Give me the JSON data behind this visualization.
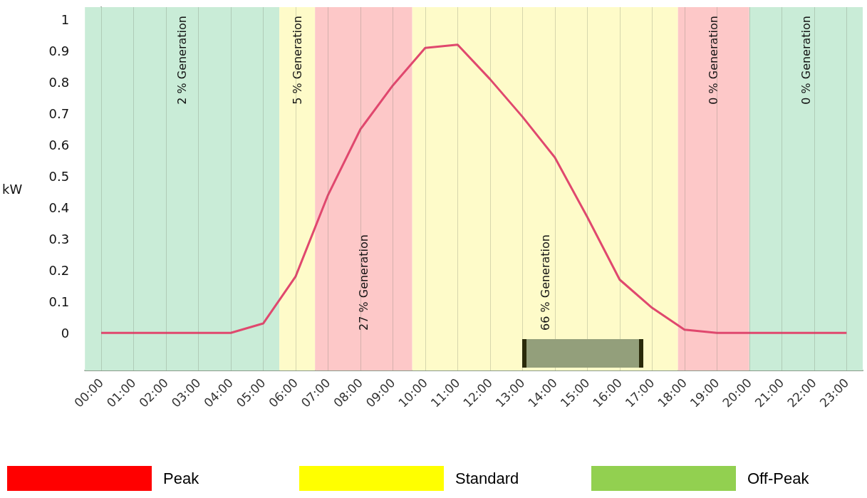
{
  "chart_data": {
    "type": "line",
    "ylabel": "kW",
    "x": [
      0,
      1,
      2,
      3,
      4,
      5,
      6,
      7,
      8,
      9,
      10,
      11,
      12,
      13,
      14,
      15,
      16,
      17,
      18,
      19,
      20,
      21,
      22,
      23
    ],
    "series": [
      {
        "color": "#e0486e",
        "values": [
          0,
          0,
          0,
          0,
          0,
          0.03,
          0.18,
          0.44,
          0.65,
          0.79,
          0.91,
          0.92,
          0.81,
          0.69,
          0.56,
          0.37,
          0.17,
          0.08,
          0.01,
          0,
          0,
          0,
          0,
          0
        ]
      }
    ],
    "annotations": [
      "Peak",
      "Standard",
      "Off-Peak"
    ],
    "bands": [
      {
        "axis": "x",
        "from": -0.5,
        "to": 5.5,
        "label": "2 % Generation",
        "color": "#c9ecd7"
      },
      {
        "axis": "x",
        "from": 5.5,
        "to": 6.6,
        "label": "5 % Generation",
        "color": "#fefbc9"
      },
      {
        "axis": "x",
        "from": 6.6,
        "to": 9.6,
        "label": "27 % Generation",
        "color": "#fdc8c8"
      },
      {
        "axis": "x",
        "from": 9.6,
        "to": 17.8,
        "label": "66 % Generation",
        "color": "#fefbc9"
      },
      {
        "axis": "x",
        "from": 17.8,
        "to": 20,
        "label": "0 % Generation",
        "color": "#fdc8c8"
      },
      {
        "axis": "x",
        "from": 20,
        "to": 23.5,
        "label": "0 % Generation",
        "color": "#c9ecd7"
      }
    ],
    "xlim": [
      -0.5,
      23.5
    ],
    "xticks": [
      {
        "value": 0,
        "label": "00:00"
      },
      {
        "value": 1,
        "label": "01:00"
      },
      {
        "value": 2,
        "label": "02:00"
      },
      {
        "value": 3,
        "label": "03:00"
      },
      {
        "value": 4,
        "label": "04:00"
      },
      {
        "value": 5,
        "label": "05:00"
      },
      {
        "value": 6,
        "label": "06:00"
      },
      {
        "value": 7,
        "label": "07:00"
      },
      {
        "value": 8,
        "label": "08:00"
      },
      {
        "value": 9,
        "label": "09:00"
      },
      {
        "value": 10,
        "label": "10:00"
      },
      {
        "value": 11,
        "label": "11:00"
      },
      {
        "value": 12,
        "label": "12:00"
      },
      {
        "value": 13,
        "label": "13:00"
      },
      {
        "value": 14,
        "label": "14:00"
      },
      {
        "value": 15,
        "label": "15:00"
      },
      {
        "value": 16,
        "label": "16:00"
      },
      {
        "value": 17,
        "label": "17:00"
      },
      {
        "value": 18,
        "label": "18:00"
      },
      {
        "value": 19,
        "label": "19:00"
      },
      {
        "value": 20,
        "label": "20:00"
      },
      {
        "value": 21,
        "label": "21:00"
      },
      {
        "value": 22,
        "label": "22:00"
      },
      {
        "value": 23,
        "label": "23:00"
      }
    ],
    "ylim": [
      -0.12,
      1.04
    ],
    "yticks": [
      0,
      0.1,
      0.2,
      0.3,
      0.4,
      0.5,
      0.6,
      0.7,
      0.8,
      0.9,
      1
    ],
    "grid": "x",
    "marker": "none",
    "line_style": "solid"
  }
}
